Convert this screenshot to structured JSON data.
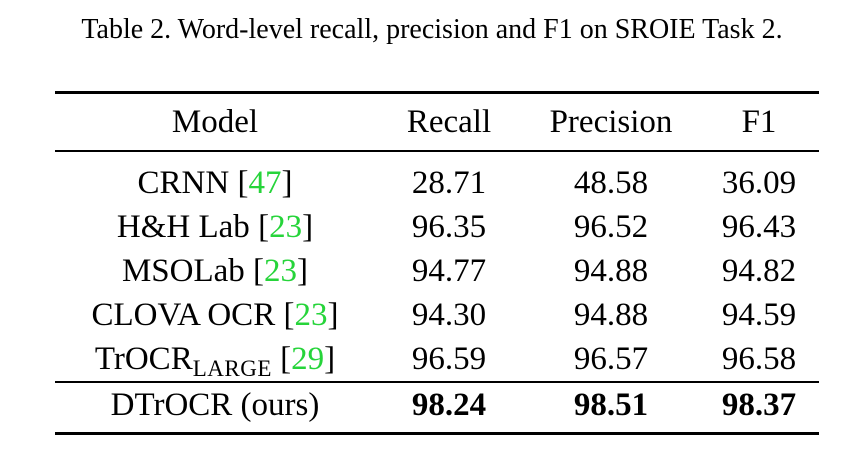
{
  "caption": "Table 2. Word-level recall, precision and F1 on SROIE Task 2.",
  "table": {
    "headers": {
      "model": "Model",
      "recall": "Recall",
      "precision": "Precision",
      "f1": "F1"
    },
    "rows": [
      {
        "model": "CRNN ",
        "model_sub": "",
        "cite": "47",
        "recall": "28.71",
        "precision": "48.58",
        "f1": "36.09"
      },
      {
        "model": "H&H Lab ",
        "model_sub": "",
        "cite": "23",
        "recall": "96.35",
        "precision": "96.52",
        "f1": "96.43"
      },
      {
        "model": "MSOLab ",
        "model_sub": "",
        "cite": "23",
        "recall": "94.77",
        "precision": "94.88",
        "f1": "94.82"
      },
      {
        "model": "CLOVA OCR ",
        "model_sub": "",
        "cite": "23",
        "recall": "94.30",
        "precision": "94.88",
        "f1": "94.59"
      },
      {
        "model": "TrOCR",
        "model_sub": "LARGE",
        "cite": "29",
        "recall": "96.59",
        "precision": "96.57",
        "f1": "96.58"
      }
    ],
    "final_row": {
      "model": "DTrOCR (ours)",
      "recall": "98.24",
      "precision": "98.51",
      "f1": "98.37"
    }
  },
  "colors": {
    "citation": "#26d43a",
    "text": "#000000",
    "rule": "#000000"
  }
}
